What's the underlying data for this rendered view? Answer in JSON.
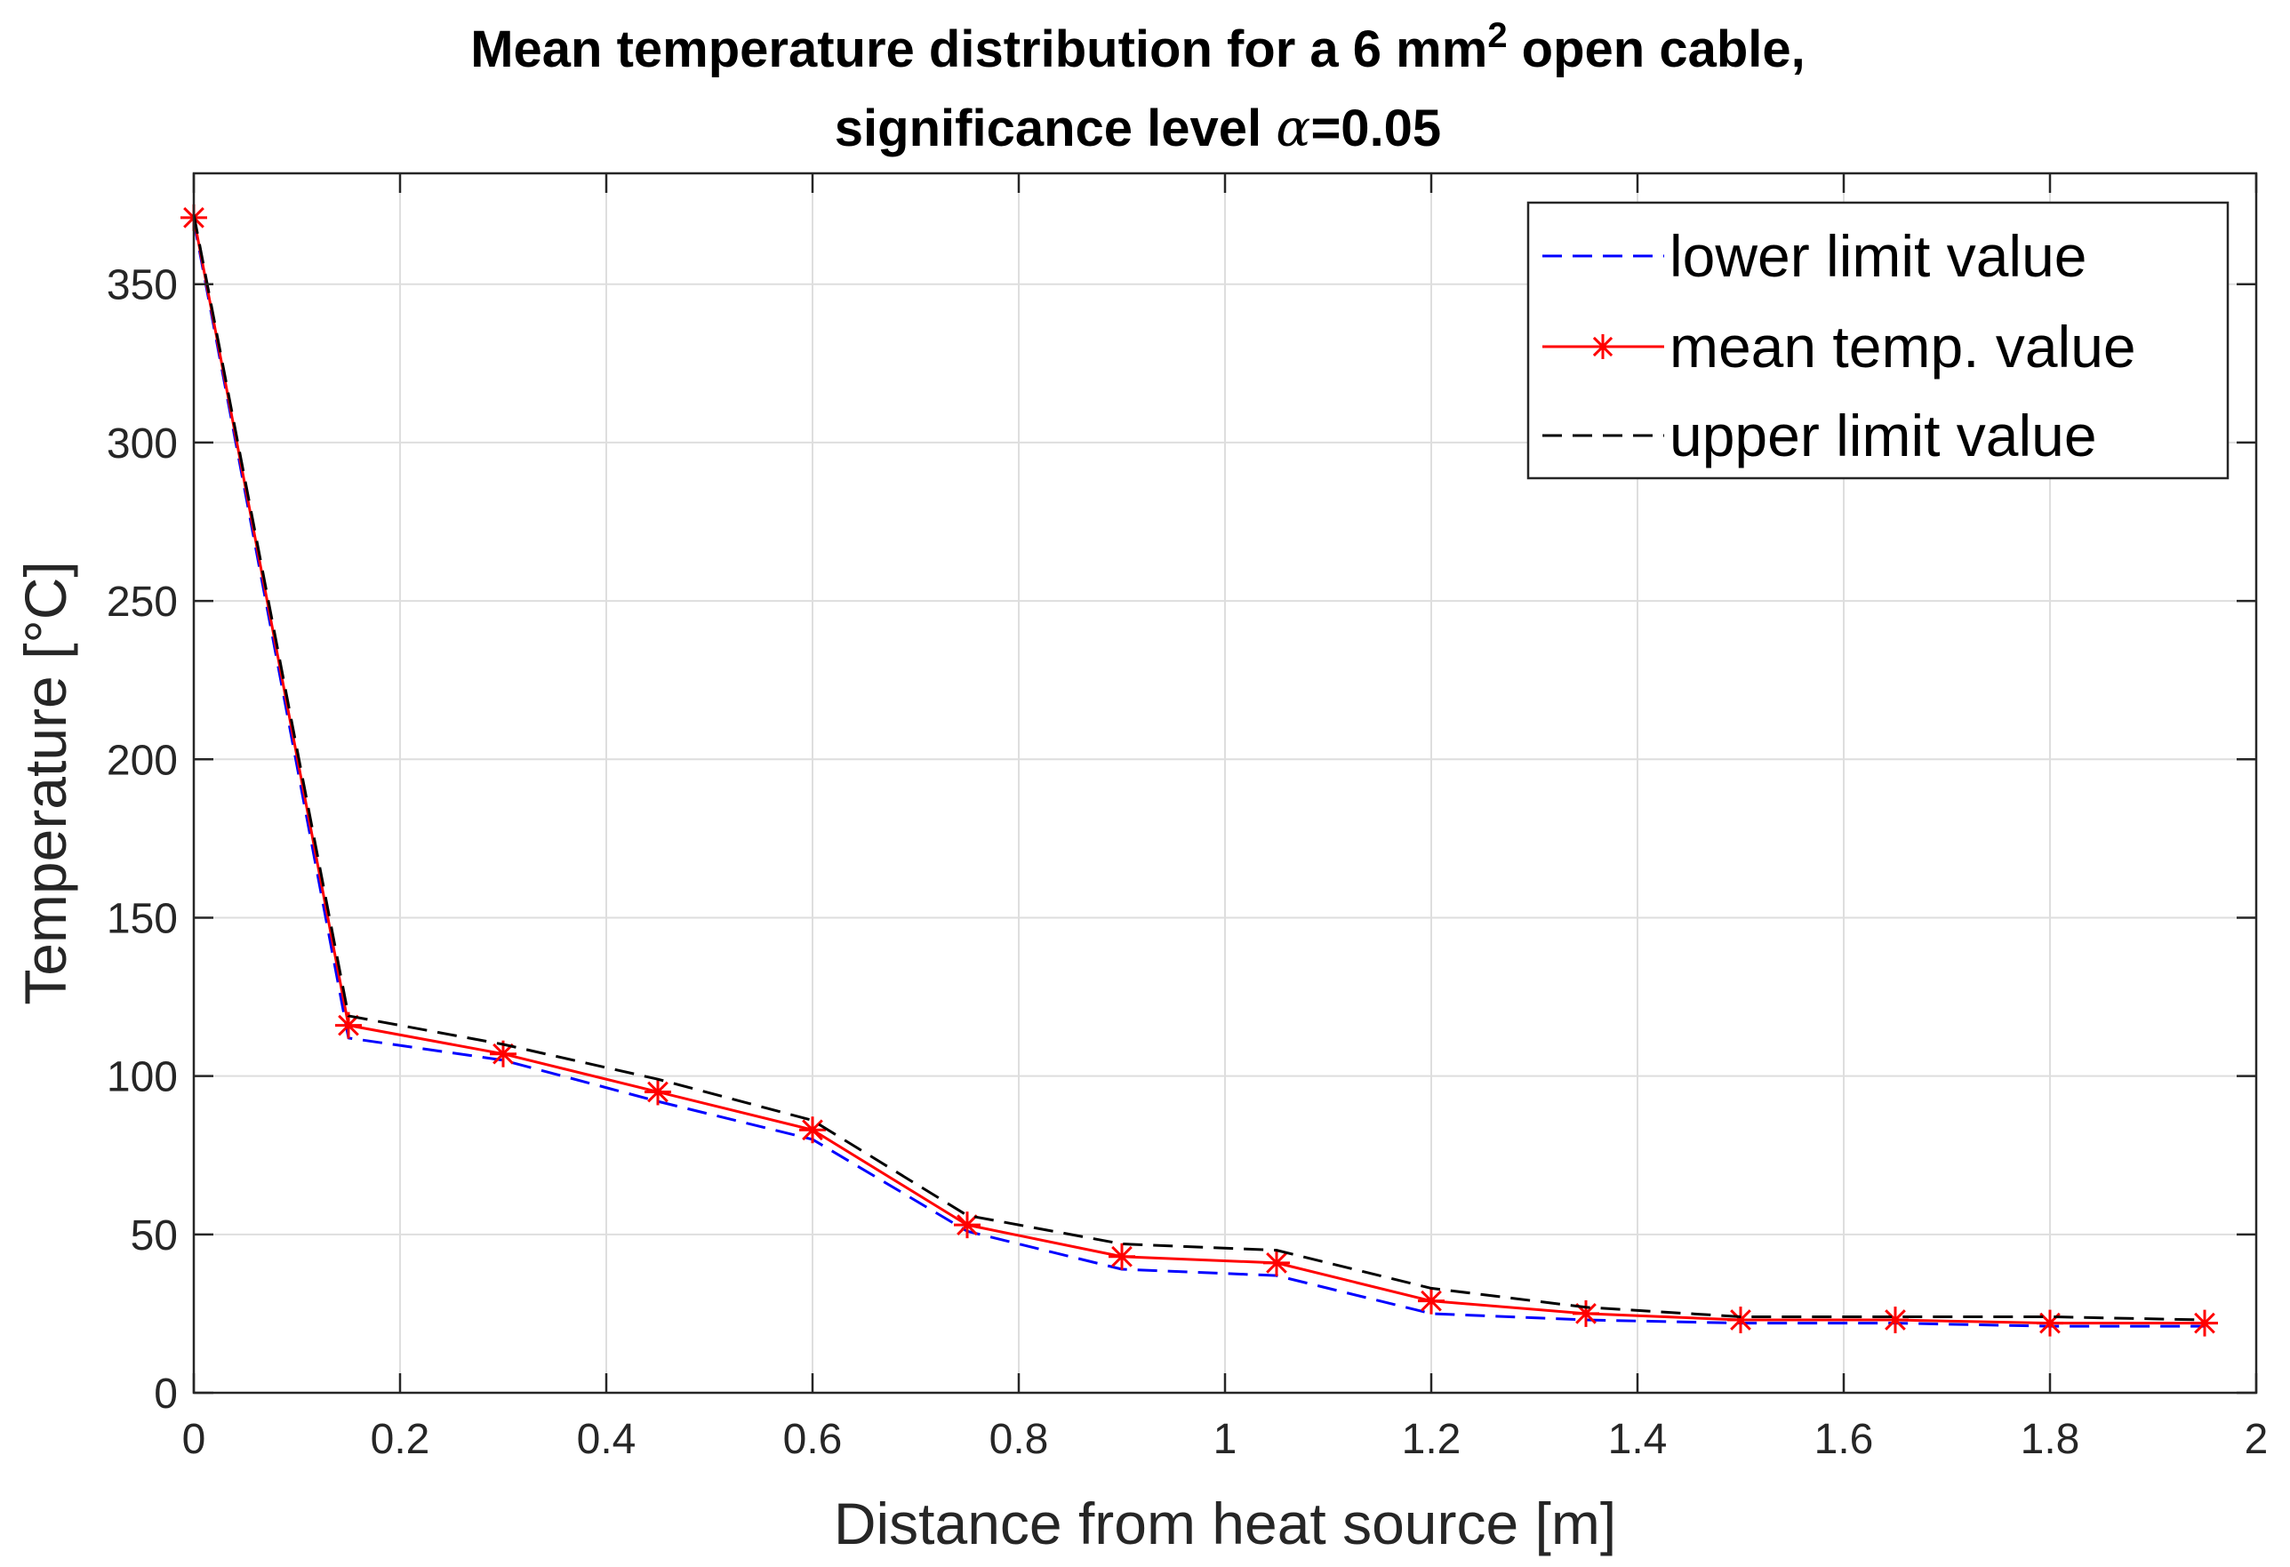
{
  "chart_data": {
    "type": "line",
    "title": {
      "line1_prefix": "Mean temperature distribution for a 6 mm",
      "line1_superscript": "2",
      "line1_suffix": " open cable,",
      "line2_prefix": "significance level ",
      "line2_symbol": "α",
      "line2_suffix": "=0.05"
    },
    "xlabel": "Distance from heat source [m]",
    "ylabel": "Temperature [°C]",
    "xlim": [
      0,
      2
    ],
    "ylim": [
      0,
      385
    ],
    "xticks": [
      0,
      0.2,
      0.4,
      0.6,
      0.8,
      1,
      1.2,
      1.4,
      1.6,
      1.8,
      2
    ],
    "xtick_labels": [
      "0",
      "0.2",
      "0.4",
      "0.6",
      "0.8",
      "1",
      "1.2",
      "1.4",
      "1.6",
      "1.8",
      "2"
    ],
    "yticks": [
      0,
      50,
      100,
      150,
      200,
      250,
      300,
      350
    ],
    "ytick_labels": [
      "0",
      "50",
      "100",
      "150",
      "200",
      "250",
      "300",
      "350"
    ],
    "grid": true,
    "legend_position": "top-right",
    "x": [
      0,
      0.15,
      0.3,
      0.45,
      0.6,
      0.75,
      0.9,
      1.05,
      1.2,
      1.35,
      1.5,
      1.65,
      1.8,
      1.95
    ],
    "series": [
      {
        "name": "lower limit value",
        "color": "#0000ff",
        "line_style": "dashed",
        "marker": "none",
        "values": [
          370,
          112,
          105,
          92,
          80,
          51,
          39,
          37,
          25,
          23,
          22,
          22,
          21,
          21
        ]
      },
      {
        "name": "mean temp. value",
        "color": "#ff0000",
        "line_style": "solid",
        "marker": "asterisk",
        "values": [
          371,
          116,
          107,
          95,
          83,
          53,
          43,
          41,
          29,
          25,
          23,
          23,
          22,
          22
        ]
      },
      {
        "name": "upper limit value",
        "color": "#000000",
        "line_style": "dashed",
        "marker": "none",
        "values": [
          372,
          119,
          110,
          99,
          86,
          56,
          47,
          45,
          33,
          27,
          24,
          24,
          24,
          23
        ]
      }
    ]
  }
}
